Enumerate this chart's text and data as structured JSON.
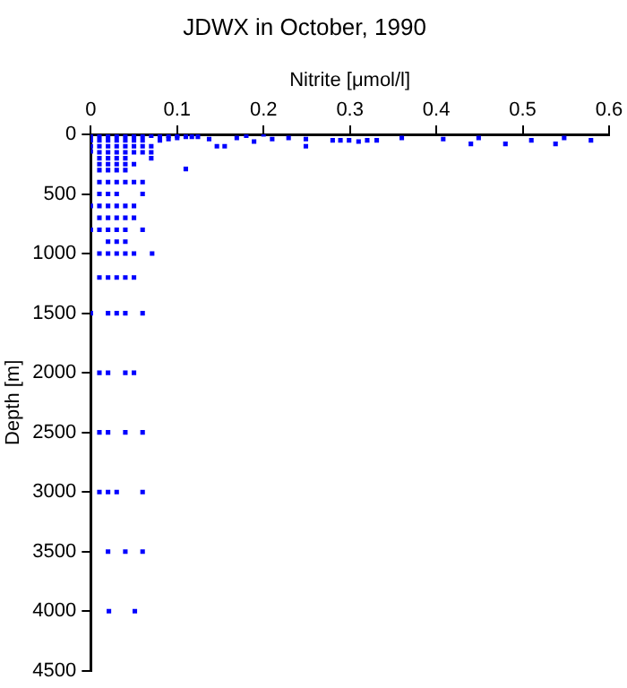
{
  "chart_data": {
    "type": "scatter",
    "title": "JDWX in October, 1990",
    "xlabel": "Nitrite [μmol/l]",
    "ylabel": "Depth [m]",
    "xlim": [
      0,
      0.6
    ],
    "xticks": [
      0,
      0.1,
      0.2,
      0.3,
      0.4,
      0.5,
      0.6
    ],
    "ylim": [
      4500,
      0
    ],
    "yticks": [
      0,
      500,
      1000,
      1500,
      2000,
      2500,
      3000,
      3500,
      4000,
      4500
    ],
    "grid": false,
    "legend": false,
    "marker": "square",
    "series": [
      {
        "color": "#0000ff",
        "x": [
          0,
          0,
          0,
          0,
          0.01,
          0.01,
          0.01,
          0.01,
          0.01,
          0.01,
          0.01,
          0.02,
          0.02,
          0.02,
          0.02,
          0.02,
          0.02,
          0.02,
          0.03,
          0.03,
          0.03,
          0.03,
          0.03,
          0.03,
          0.03,
          0.04,
          0.04,
          0.04,
          0.04,
          0.04,
          0.04,
          0.04,
          0.05,
          0.05,
          0.05,
          0.05,
          0.05,
          0.06,
          0.06,
          0.06,
          0.06,
          0.07,
          0.07,
          0.07,
          0.07,
          0.08,
          0.08,
          0.09,
          0.09,
          0.1,
          0.1,
          0.11,
          0.11,
          0.117,
          0.124,
          0.137,
          0.146,
          0.155,
          0.169,
          0.18,
          0.189,
          0.2,
          0.21,
          0.229,
          0.249,
          0.249,
          0.28,
          0.289,
          0.299,
          0.31,
          0.32,
          0.331,
          0.36,
          0.408,
          0.44,
          0.449,
          0.48,
          0.51,
          0.538,
          0.548,
          0.579,
          0.01,
          0.02,
          0.03,
          0.04,
          0.05,
          0.06,
          0.01,
          0.02,
          0.03,
          0.06,
          0,
          0.01,
          0.02,
          0.03,
          0.04,
          0.05,
          0.01,
          0.02,
          0.03,
          0.04,
          0.05,
          0,
          0.01,
          0.02,
          0.03,
          0.04,
          0.06,
          0.02,
          0.03,
          0.04,
          0.01,
          0.02,
          0.03,
          0.04,
          0.05,
          0.071,
          0.01,
          0.02,
          0.03,
          0.04,
          0.05,
          0,
          0.02,
          0.03,
          0.04,
          0.06,
          0.01,
          0.02,
          0.04,
          0.05,
          0.01,
          0.02,
          0.04,
          0.06,
          0.01,
          0.02,
          0.03,
          0.06,
          0.02,
          0.04,
          0.06,
          0.021,
          0.051
        ],
        "values": [
          10,
          50,
          100,
          143,
          10,
          50,
          100,
          150,
          200,
          250,
          300,
          10,
          50,
          100,
          150,
          200,
          250,
          300,
          10,
          50,
          100,
          150,
          200,
          250,
          300,
          10,
          50,
          100,
          150,
          200,
          250,
          300,
          10,
          50,
          100,
          150,
          250,
          10,
          50,
          100,
          150,
          10,
          100,
          150,
          200,
          10,
          50,
          10,
          40,
          10,
          30,
          20,
          290,
          20,
          20,
          40,
          100,
          100,
          30,
          10,
          60,
          0,
          40,
          30,
          40,
          100,
          50,
          50,
          50,
          60,
          50,
          50,
          30,
          40,
          80,
          30,
          80,
          50,
          80,
          30,
          50,
          400,
          400,
          400,
          400,
          400,
          400,
          500,
          500,
          500,
          500,
          600,
          600,
          600,
          600,
          600,
          600,
          700,
          700,
          700,
          700,
          700,
          800,
          800,
          800,
          800,
          800,
          800,
          900,
          900,
          900,
          1000,
          1000,
          1000,
          1000,
          1000,
          1000,
          1200,
          1200,
          1200,
          1200,
          1200,
          1500,
          1500,
          1500,
          1500,
          1500,
          2000,
          2000,
          2000,
          2000,
          2500,
          2500,
          2500,
          2500,
          3000,
          3000,
          3000,
          3000,
          3500,
          3500,
          3500,
          4000,
          4000
        ]
      }
    ]
  }
}
